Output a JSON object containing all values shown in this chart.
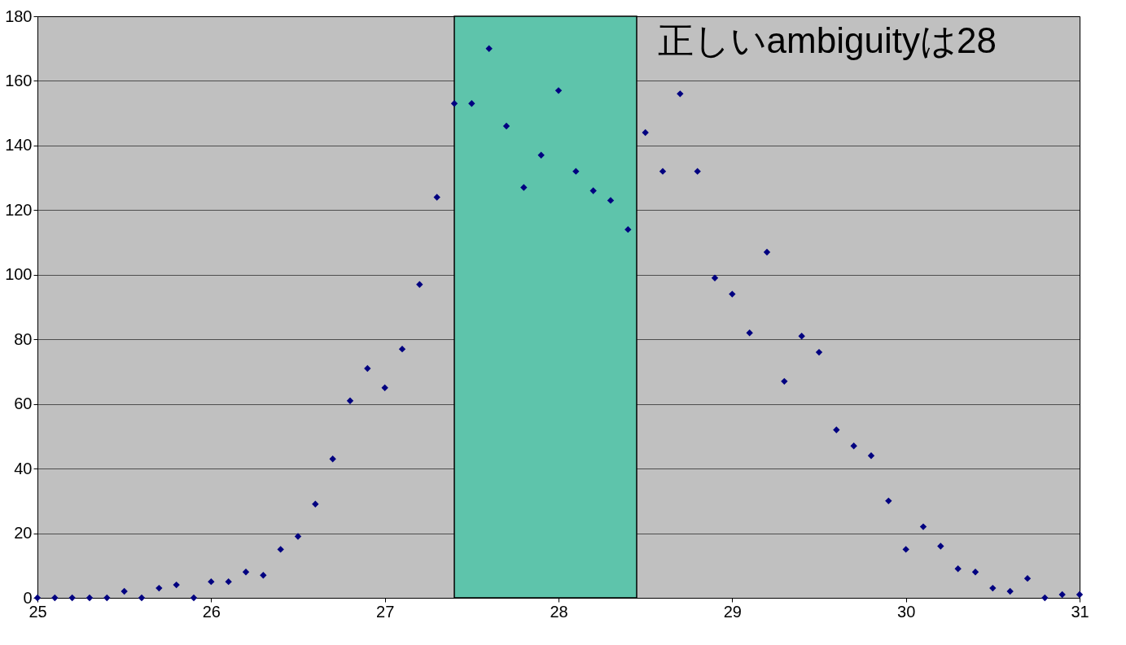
{
  "chart_data": {
    "type": "scatter",
    "x": [
      25.0,
      25.1,
      25.2,
      25.3,
      25.4,
      25.5,
      25.6,
      25.7,
      25.8,
      25.9,
      26.0,
      26.1,
      26.2,
      26.3,
      26.4,
      26.5,
      26.6,
      26.7,
      26.8,
      26.9,
      27.0,
      27.1,
      27.2,
      27.3,
      27.4,
      27.5,
      27.6,
      27.7,
      27.8,
      27.9,
      28.0,
      28.1,
      28.2,
      28.3,
      28.4,
      28.5,
      28.6,
      28.7,
      28.8,
      28.9,
      29.0,
      29.1,
      29.2,
      29.3,
      29.4,
      29.5,
      29.6,
      29.7,
      29.8,
      29.9,
      30.0,
      30.1,
      30.2,
      30.3,
      30.4,
      30.5,
      30.6,
      30.7,
      30.8,
      30.9,
      31.0
    ],
    "series": [
      {
        "color": "#000080",
        "values": [
          0,
          0,
          0,
          0,
          0,
          2,
          0,
          3,
          4,
          0,
          5,
          5,
          8,
          7,
          15,
          19,
          29,
          43,
          61,
          71,
          65,
          77,
          97,
          124,
          153,
          153,
          170,
          146,
          127,
          137,
          157,
          132,
          126,
          123,
          114,
          144,
          132,
          156,
          132,
          99,
          94,
          82,
          107,
          67,
          81,
          76,
          52,
          47,
          44,
          30,
          15,
          22,
          16,
          9,
          8,
          3,
          2,
          6,
          0,
          1,
          1
        ]
      }
    ],
    "xlim": [
      25,
      31
    ],
    "xticks": [
      25,
      26,
      27,
      28,
      29,
      30,
      31
    ],
    "ylim": [
      0,
      180
    ],
    "yticks": [
      0,
      20,
      40,
      60,
      80,
      100,
      120,
      140,
      160,
      180
    ],
    "grid": "y",
    "marker": "diamond",
    "bands": [
      {
        "axis": "x",
        "from": 27.4,
        "to": 28.45,
        "color": "#5ec4ab"
      }
    ],
    "annotations": [
      "正しいambiguityは28"
    ]
  }
}
